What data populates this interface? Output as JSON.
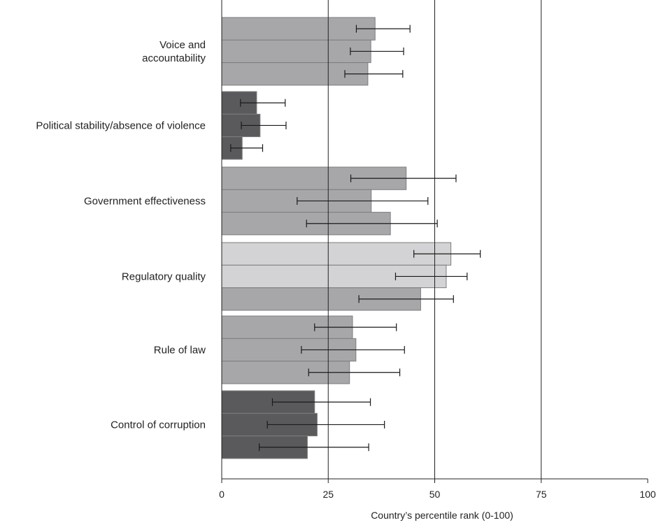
{
  "chart_data": {
    "type": "bar",
    "orientation": "horizontal",
    "xlabel": "Country’s percentile rank (0-100)",
    "xlim": [
      0,
      100
    ],
    "xticks": [
      0,
      25,
      50,
      75,
      100
    ],
    "xtick_labels": [
      "0",
      "25",
      "50",
      "75",
      "100"
    ],
    "gridlines_at": [
      25,
      50,
      75
    ],
    "categories": [
      {
        "label_lines": [
          "Voice and",
          "accountability"
        ],
        "color": "#a7a7a9",
        "bars": [
          {
            "value": 36,
            "err_low": 31.6,
            "err_high": 44.2
          },
          {
            "value": 35,
            "err_low": 30.2,
            "err_high": 42.7
          },
          {
            "value": 34.3,
            "err_low": 28.9,
            "err_high": 42.5
          }
        ]
      },
      {
        "label_lines": [
          "Political stability/absence of violence"
        ],
        "color": "#5a5a5c",
        "bars": [
          {
            "value": 8.2,
            "err_low": 4.4,
            "err_high": 14.9
          },
          {
            "value": 9,
            "err_low": 4.6,
            "err_high": 15.1
          },
          {
            "value": 4.8,
            "err_low": 2.1,
            "err_high": 9.6
          }
        ]
      },
      {
        "label_lines": [
          "Government effectiveness"
        ],
        "color": "#a7a7a9",
        "bars": [
          {
            "value": 43.3,
            "err_low": 30.3,
            "err_high": 55
          },
          {
            "value": 35.1,
            "err_low": 17.7,
            "err_high": 48.4
          },
          {
            "value": 39.6,
            "err_low": 19.9,
            "err_high": 50.6
          }
        ]
      },
      {
        "label_lines": [
          "Regulatory quality"
        ],
        "colors": [
          "#d3d3d5",
          "#d3d3d5",
          "#a7a7a9"
        ],
        "bars": [
          {
            "value": 53.8,
            "err_low": 45.1,
            "err_high": 60.7
          },
          {
            "value": 52.7,
            "err_low": 40.8,
            "err_high": 57.6
          },
          {
            "value": 46.7,
            "err_low": 32.2,
            "err_high": 54.4
          }
        ]
      },
      {
        "label_lines": [
          "Rule of law"
        ],
        "color": "#a7a7a9",
        "bars": [
          {
            "value": 30.7,
            "err_low": 21.8,
            "err_high": 41
          },
          {
            "value": 31.5,
            "err_low": 18.7,
            "err_high": 42.9
          },
          {
            "value": 30,
            "err_low": 20.4,
            "err_high": 41.8
          }
        ]
      },
      {
        "label_lines": [
          "Control of corruption"
        ],
        "color": "#5a5a5c",
        "bars": [
          {
            "value": 21.8,
            "err_low": 11.9,
            "err_high": 34.9
          },
          {
            "value": 22.4,
            "err_low": 10.7,
            "err_high": 38.2
          },
          {
            "value": 20.1,
            "err_low": 8.8,
            "err_high": 34.5
          }
        ]
      }
    ]
  }
}
